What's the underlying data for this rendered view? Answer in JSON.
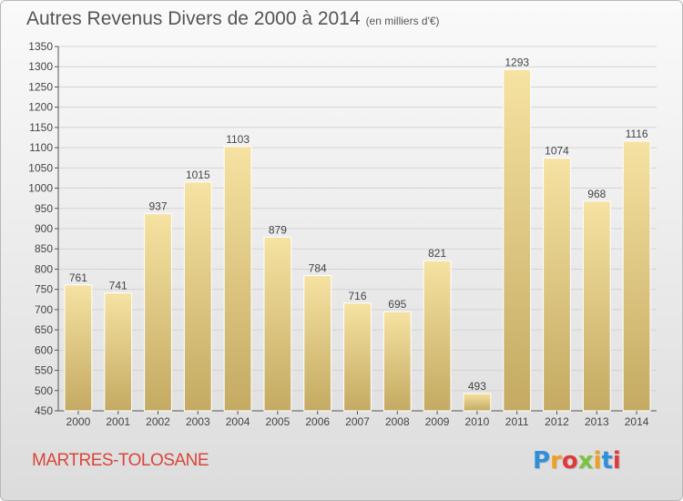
{
  "header": {
    "title": "Autres Revenus Divers de 2000 à 2014",
    "subtitle": "(en milliers d'€)"
  },
  "footer": {
    "commune": "MARTRES-TOLOSANE",
    "brand_letters": [
      "P",
      "r",
      "o",
      "x",
      "i",
      "t",
      "i"
    ],
    "brand_colors": [
      "#2f8fd8",
      "#f0a020",
      "#e03a3a",
      "#7cc242",
      "#f0a020",
      "#2f8fd8",
      "#e03a3a"
    ]
  },
  "colors": {
    "bar_light": "#f6e2a2",
    "bar_dark": "#c4aa62",
    "axis": "#555555",
    "grid": "#d4d4d4",
    "text": "#444444"
  },
  "chart_data": {
    "type": "bar",
    "categories": [
      "2000",
      "2001",
      "2002",
      "2003",
      "2004",
      "2005",
      "2006",
      "2007",
      "2008",
      "2009",
      "2010",
      "2011",
      "2012",
      "2013",
      "2014"
    ],
    "values": [
      761,
      741,
      937,
      1015,
      1103,
      879,
      784,
      716,
      695,
      821,
      493,
      1293,
      1074,
      968,
      1116
    ],
    "ylim": [
      450,
      1350
    ],
    "yticks": [
      450,
      500,
      550,
      600,
      650,
      700,
      750,
      800,
      850,
      900,
      950,
      1000,
      1050,
      1100,
      1150,
      1200,
      1250,
      1300,
      1350
    ],
    "grid": true,
    "data_labels": true
  }
}
